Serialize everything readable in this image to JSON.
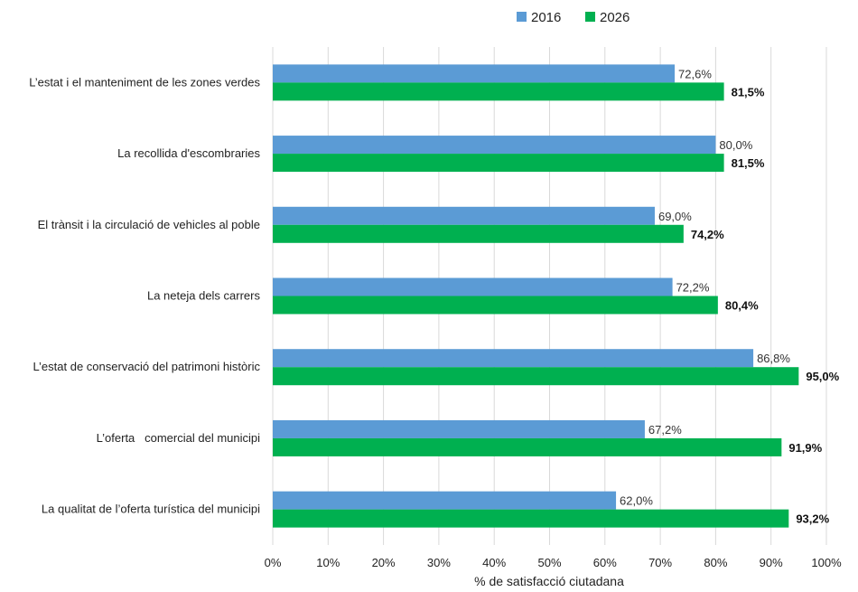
{
  "chart_data": {
    "type": "bar",
    "orientation": "horizontal",
    "categories": [
      "L’estat i el manteniment de les zones verdes",
      "La recollida d'escombraries",
      "El trànsit i la circulació de vehicles al poble",
      "La neteja dels carrers",
      "L’estat de conservació del patrimoni històric",
      "L’oferta   comercial del municipi",
      "La qualitat de l’oferta turística del municipi"
    ],
    "series": [
      {
        "name": "2016",
        "color": "#5b9bd5",
        "values": [
          72.6,
          80.0,
          69.0,
          72.2,
          86.8,
          67.2,
          62.0
        ],
        "labels": [
          "72,6%",
          "80,0%",
          "69,0%",
          "72,2%",
          "86,8%",
          "67,2%",
          "62,0%"
        ]
      },
      {
        "name": "2026",
        "color": "#00b050",
        "values": [
          81.5,
          81.5,
          74.2,
          80.4,
          95.0,
          91.9,
          93.2
        ],
        "labels": [
          "81,5%",
          "81,5%",
          "74,2%",
          "80,4%",
          "95,0%",
          "91,9%",
          "93,2%"
        ]
      }
    ],
    "xlabel": "% de satisfacció ciutadana",
    "xlim": [
      0,
      100
    ],
    "xticks": [
      "0%",
      "10%",
      "20%",
      "30%",
      "40%",
      "50%",
      "60%",
      "70%",
      "80%",
      "90%",
      "100%"
    ],
    "grid": true,
    "legend": "top-center"
  }
}
